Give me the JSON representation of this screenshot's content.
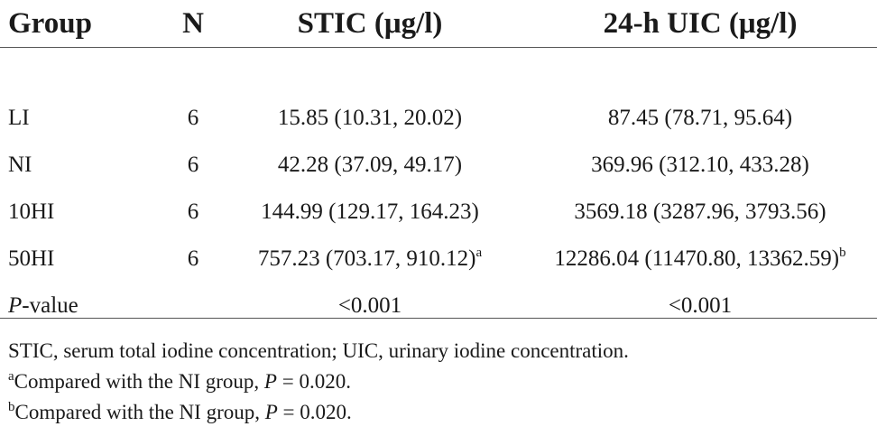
{
  "table": {
    "headers": {
      "group": "Group",
      "n": "N",
      "stic": "STIC (μg/l)",
      "uic": "24-h UIC (μg/l)"
    },
    "rows": [
      {
        "group": "LI",
        "n": "6",
        "stic": "15.85 (10.31, 20.02)",
        "stic_sup": "",
        "uic": "87.45 (78.71, 95.64)",
        "uic_sup": ""
      },
      {
        "group": "NI",
        "n": "6",
        "stic": "42.28 (37.09, 49.17)",
        "stic_sup": "",
        "uic": "369.96 (312.10, 433.28)",
        "uic_sup": ""
      },
      {
        "group": "10HI",
        "n": "6",
        "stic": "144.99 (129.17, 164.23)",
        "stic_sup": "",
        "uic": "3569.18 (3287.96, 3793.56)",
        "uic_sup": ""
      },
      {
        "group": "50HI",
        "n": "6",
        "stic": "757.23 (703.17, 910.12)",
        "stic_sup": "a",
        "uic": "12286.04 (11470.80, 13362.59)",
        "uic_sup": "b"
      }
    ],
    "pvalue_row": {
      "label_italic": "P",
      "label_rest": "-value",
      "n": "",
      "stic": "<0.001",
      "uic": "<0.001"
    }
  },
  "footnotes": {
    "abbreviations": "STIC, serum total iodine concentration; UIC, urinary iodine concentration.",
    "note_a": {
      "mark": "a",
      "text_before": "Compared with the NI group, ",
      "p_italic": "P",
      "text_after": " = 0.020."
    },
    "note_b": {
      "mark": "b",
      "text_before": "Compared with the NI group, ",
      "p_italic": "P",
      "text_after": " = 0.020."
    }
  }
}
